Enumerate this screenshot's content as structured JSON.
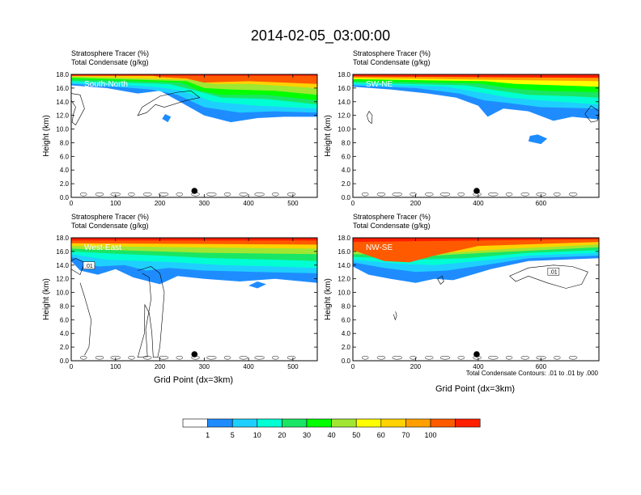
{
  "figure": {
    "title": "2014-02-05_03:00:00",
    "xlabel": "Grid Point (dx=3km)",
    "footnote": "Total Condensate Contours: .01 to .01 by .000",
    "colorbar": {
      "colors": [
        "#ffffff",
        "#1e8cff",
        "#1ed0ff",
        "#00ffd2",
        "#19e664",
        "#00ff00",
        "#a0e632",
        "#ffff00",
        "#ffd200",
        "#ffa000",
        "#ff5a00",
        "#ff1e00"
      ],
      "labels": [
        "1",
        "5",
        "10",
        "20",
        "30",
        "40",
        "50",
        "60",
        "70",
        "100"
      ]
    }
  },
  "chart_data": [
    {
      "type": "heatmap",
      "panel": "South-North",
      "header_line1": "Stratosphere Tracer   (%)",
      "header_line2": "Total Condensate   (g/kg)",
      "ylabel": "Height (km)",
      "xlim": [
        0,
        555
      ],
      "ylim": [
        0,
        18
      ],
      "xticks": [
        "0",
        "100",
        "200",
        "300",
        "400",
        "500"
      ],
      "yticks": [
        "0.0",
        "2.0",
        "4.0",
        "6.0",
        "8.0",
        "10.0",
        "12.0",
        "14.0",
        "16.0",
        "18.0"
      ],
      "marker_x": 278,
      "tracer_top_km": 18,
      "tracer_base_km": 16.4,
      "contour_label": ""
    },
    {
      "type": "heatmap",
      "panel": "SW-NE",
      "header_line1": "Stratosphere Tracer   (%)",
      "header_line2": "Total Condensate   (g/kg)",
      "ylabel": "Height (km)",
      "xlim": [
        0,
        785
      ],
      "ylim": [
        0,
        18
      ],
      "xticks": [
        "0",
        "200",
        "400",
        "600"
      ],
      "yticks": [
        "0.0",
        "2.0",
        "4.0",
        "6.0",
        "8.0",
        "10.0",
        "12.0",
        "14.0",
        "16.0",
        "18.0"
      ],
      "marker_x": 395,
      "tracer_top_km": 18,
      "tracer_base_km": 16.2,
      "contour_label": ""
    },
    {
      "type": "heatmap",
      "panel": "West-East",
      "header_line1": "Stratosphere Tracer   (%)",
      "header_line2": "Total Condensate   (g/kg)",
      "ylabel": "Height (km)",
      "xlim": [
        0,
        555
      ],
      "ylim": [
        0,
        18
      ],
      "xticks": [
        "0",
        "100",
        "200",
        "300",
        "400",
        "500"
      ],
      "yticks": [
        "0.0",
        "2.0",
        "4.0",
        "6.0",
        "8.0",
        "10.0",
        "12.0",
        "14.0",
        "16.0",
        "18.0"
      ],
      "marker_x": 278,
      "tracer_top_km": 18,
      "tracer_base_km": 14.5,
      "contour_label": ".01"
    },
    {
      "type": "heatmap",
      "panel": "NW-SE",
      "header_line1": "Stratosphere Tracer   (%)",
      "header_line2": "Total Condensate   (g/kg)",
      "ylabel": "Height (km)",
      "xlim": [
        0,
        785
      ],
      "ylim": [
        0,
        18
      ],
      "xticks": [
        "0",
        "200",
        "400",
        "600"
      ],
      "yticks": [
        "0.0",
        "2.0",
        "4.0",
        "6.0",
        "8.0",
        "10.0",
        "12.0",
        "14.0",
        "16.0",
        "18.0"
      ],
      "marker_x": 395,
      "tracer_top_km": 18,
      "tracer_base_km": 13.8,
      "contour_label": ".01"
    }
  ]
}
